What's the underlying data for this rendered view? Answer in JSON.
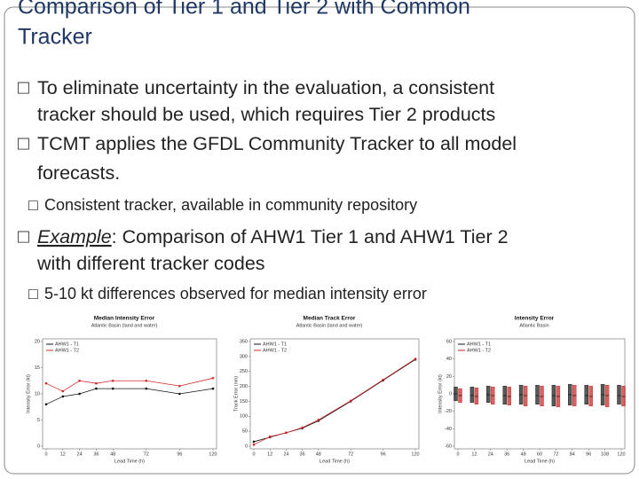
{
  "title": [
    "Comparison of Tier 1 and Tier 2 with Common",
    "Tracker"
  ],
  "bullet_glyph": "□",
  "bullets": [
    {
      "level": 1,
      "lines": [
        "To eliminate uncertainty in the evaluation, a consistent",
        "tracker should be used, which requires  Tier 2 products"
      ]
    },
    {
      "level": 1,
      "lines": [
        "TCMT applies the GFDL Community Tracker to all model",
        "forecasts."
      ]
    },
    {
      "level": 2,
      "lines": [
        "Consistent tracker, available in community repository"
      ]
    },
    {
      "level": 1,
      "lead": "Example",
      "lines": [
        ": Comparison of AHW1 Tier 1 and AHW1 Tier 2",
        "with different tracker codes"
      ]
    },
    {
      "level": 2,
      "lines": [
        "5-10 kt differences observed for median intensity error"
      ]
    }
  ],
  "figures": [
    {
      "type": "line",
      "title": "Median Intensity Error",
      "subtitle": "Atlantic Basin (land and water)",
      "x_label": "Lead Time (h)",
      "y_label": "Intensity Error (kt)",
      "x": [
        0,
        12,
        24,
        36,
        48,
        72,
        96,
        120
      ],
      "xlim": [
        0,
        120
      ],
      "xticks": [
        0,
        12,
        24,
        36,
        48,
        72,
        96,
        120
      ],
      "ylim": [
        0,
        20
      ],
      "yticks": [
        0,
        5,
        10,
        15,
        20
      ],
      "series": [
        {
          "name": "AHW1 - T1",
          "color": "#111111",
          "values": [
            8,
            9.5,
            10,
            11,
            11,
            11,
            10,
            11
          ]
        },
        {
          "name": "AHW1 - T2",
          "color": "#d62728",
          "values": [
            12,
            10.5,
            12.5,
            12,
            12.5,
            12.5,
            11.5,
            13
          ]
        }
      ]
    },
    {
      "type": "line",
      "title": "Median Track Error",
      "subtitle": "Atlantic Basin (land and water)",
      "x_label": "Lead Time (h)",
      "y_label": "Track Error (nm)",
      "x": [
        0,
        12,
        24,
        36,
        48,
        72,
        96,
        120
      ],
      "xlim": [
        0,
        120
      ],
      "xticks": [
        0,
        12,
        24,
        36,
        48,
        72,
        96,
        120
      ],
      "ylim": [
        0,
        350
      ],
      "yticks": [
        0,
        50,
        100,
        150,
        200,
        250,
        300,
        350
      ],
      "series": [
        {
          "name": "AHW1 - T1",
          "color": "#111111",
          "values": [
            15,
            30,
            45,
            60,
            85,
            150,
            220,
            290
          ]
        },
        {
          "name": "AHW1 - T2",
          "color": "#d62728",
          "values": [
            5,
            32,
            45,
            62,
            88,
            152,
            222,
            292
          ]
        }
      ]
    },
    {
      "type": "box",
      "title": "Intensity Error",
      "subtitle": "Atlantic Basin",
      "x_label": "Lead Time (h)",
      "y_label": "Intensity Error (kt)",
      "x": [
        0,
        12,
        24,
        36,
        48,
        60,
        72,
        84,
        96,
        108,
        120
      ],
      "xlim": [
        0,
        120
      ],
      "xticks": [
        0,
        12,
        24,
        36,
        48,
        60,
        72,
        84,
        96,
        108,
        120
      ],
      "ylim": [
        -60,
        60
      ],
      "yticks": [
        -60,
        -40,
        -20,
        0,
        20,
        40,
        60
      ],
      "series": [
        {
          "name": "AHW1 - T1",
          "color": "#111111",
          "q1": [
            -8,
            -10,
            -10,
            -12,
            -12,
            -12,
            -14,
            -13,
            -12,
            -13,
            -12
          ],
          "median": [
            0,
            -2,
            -1,
            -2,
            -1,
            -2,
            -2,
            -1,
            -2,
            -1,
            -2
          ],
          "q3": [
            8,
            8,
            9,
            9,
            10,
            10,
            10,
            11,
            10,
            11,
            10
          ]
        },
        {
          "name": "AHW1 - T2",
          "color": "#c0221f",
          "q1": [
            -10,
            -12,
            -12,
            -13,
            -14,
            -14,
            -15,
            -14,
            -14,
            -15,
            -14
          ],
          "median": [
            -2,
            -3,
            -2,
            -3,
            -2,
            -3,
            -3,
            -2,
            -3,
            -2,
            -3
          ],
          "q3": [
            6,
            7,
            8,
            8,
            9,
            9,
            9,
            10,
            9,
            10,
            9
          ]
        }
      ]
    }
  ]
}
